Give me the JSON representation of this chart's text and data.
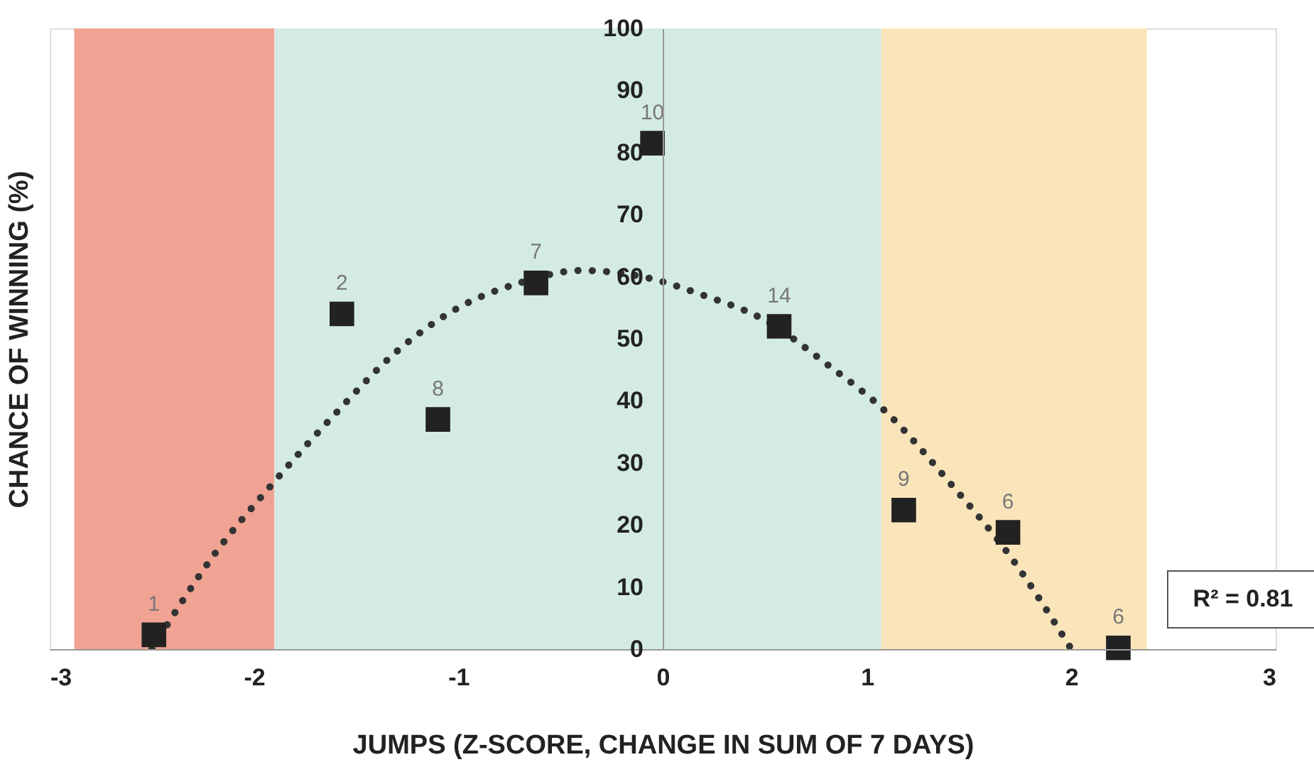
{
  "chart_data": {
    "type": "scatter",
    "xlabel": "JUMPS (Z-SCORE, CHANGE IN SUM OF 7 DAYS)",
    "ylabel": "CHANCE OF WINNING (%)",
    "xlim": [
      -3,
      3
    ],
    "xticks": [
      -3,
      -2,
      -1,
      0,
      1,
      2,
      3
    ],
    "ylim": [
      0,
      100
    ],
    "yticks": [
      0,
      10,
      20,
      30,
      40,
      50,
      60,
      70,
      80,
      90,
      100
    ],
    "grid": false,
    "annotations": [
      "R² = 0.81",
      {
        "text": "1",
        "x": -2.49,
        "y": 2.3
      },
      {
        "text": "2",
        "x": -1.57,
        "y": 54
      },
      {
        "text": "8",
        "x": -1.1,
        "y": 37
      },
      {
        "text": "7",
        "x": -0.62,
        "y": 59
      },
      {
        "text": "10",
        "x": -0.05,
        "y": 81.5
      },
      {
        "text": "14",
        "x": 0.57,
        "y": 52
      },
      {
        "text": "9",
        "x": 1.18,
        "y": 22.4
      },
      {
        "text": "6",
        "x": 1.69,
        "y": 18.8
      },
      {
        "text": "6",
        "x": 2.23,
        "y": 0.2
      }
    ],
    "bands": [
      {
        "axis": "x",
        "from": -2.88,
        "to": -1.9,
        "color": "#f0a393"
      },
      {
        "axis": "x",
        "from": -1.9,
        "to": 1.07,
        "color": "#d4ebe4"
      },
      {
        "axis": "x",
        "from": 1.07,
        "to": 2.37,
        "color": "#fae5bb"
      }
    ],
    "series": [
      {
        "type": "line",
        "color": "#333333",
        "line_style": "dotted",
        "marker": "none",
        "x": [
          -2.5,
          -2.2,
          -1.9,
          -1.6,
          -1.3,
          -1.0,
          -0.7,
          -0.4,
          -0.1,
          0.2,
          0.5,
          0.8,
          1.1,
          1.4,
          1.7,
          2.0
        ],
        "values": [
          0,
          15,
          27,
          38,
          48,
          55,
          59,
          61,
          60,
          57,
          53,
          46,
          38,
          27,
          15,
          0
        ]
      },
      {
        "color": "#222222",
        "marker": "square",
        "x": [
          -2.49,
          -1.57,
          -1.1,
          -0.62,
          -0.05,
          0.57,
          1.18,
          1.69,
          2.23
        ],
        "values": [
          2.3,
          54,
          37,
          59,
          81.5,
          52,
          22.4,
          18.8,
          0.2
        ]
      }
    ]
  }
}
